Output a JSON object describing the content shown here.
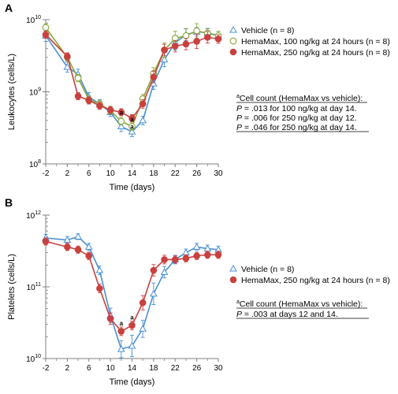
{
  "colors": {
    "vehicle": "#4a90d0",
    "hm100": "#8aa83a",
    "hm250": "#c8413f",
    "axis": "#7f7f7f"
  },
  "chart_data": [
    {
      "panel": "A",
      "type": "line",
      "xlabel": "Time (days)",
      "ylabel": "Leukocytes (cells/L)",
      "xticks": [
        -2,
        2,
        6,
        10,
        14,
        18,
        22,
        26,
        30
      ],
      "xlim": [
        -2,
        30
      ],
      "yscale": "log",
      "ylim_exponents": [
        8,
        10
      ],
      "yticks": [
        {
          "base": "10",
          "exp": "10"
        },
        {
          "base": "10",
          "exp": "9"
        },
        {
          "base": "10",
          "exp": "8"
        }
      ],
      "series": [
        {
          "name": "Vehicle (n = 8)",
          "marker": "triangle-open",
          "colorKey": "vehicle",
          "x": [
            -2,
            2,
            4,
            6,
            8,
            10,
            12,
            14,
            16,
            18,
            20,
            22,
            24,
            26,
            28,
            30
          ],
          "y": [
            6000000000,
            2200000000,
            1750000000,
            850000000,
            680000000,
            520000000,
            330000000,
            280000000,
            400000000,
            1300000000,
            2800000000,
            4800000000,
            6200000000,
            6800000000,
            6600000000,
            6000000000
          ],
          "err": [
            0.08,
            0.07,
            0.07,
            0.06,
            0.06,
            0.06,
            0.07,
            0.07,
            0.06,
            0.08,
            0.1,
            0.1,
            0.08,
            0.06,
            0.06,
            0.06
          ]
        },
        {
          "name": "HemaMax, 100 ng/kg at 24 hours (n = 8)",
          "marker": "circle-open",
          "colorKey": "hm100",
          "x": [
            -2,
            2,
            4,
            6,
            8,
            10,
            12,
            14,
            16,
            18,
            20,
            22,
            24,
            26,
            28,
            30
          ],
          "y": [
            7800000000,
            3000000000,
            1550000000,
            780000000,
            680000000,
            550000000,
            390000000,
            330000000,
            800000000,
            1800000000,
            3800000000,
            5500000000,
            6000000000,
            7000000000,
            6500000000,
            6000000000
          ],
          "err": [
            0.05,
            0.05,
            0.05,
            0.05,
            0.05,
            0.05,
            0.05,
            0.05,
            0.06,
            0.08,
            0.1,
            0.1,
            0.1,
            0.1,
            0.06,
            0.06
          ]
        },
        {
          "name": "HemaMax, 250 ng/kg at 24 hours (n = 8)",
          "marker": "circle-filled",
          "colorKey": "hm250",
          "x": [
            -2,
            2,
            4,
            6,
            8,
            10,
            12,
            14,
            16,
            18,
            20,
            22,
            24,
            26,
            28,
            30
          ],
          "y": [
            6200000000,
            3100000000,
            870000000,
            760000000,
            640000000,
            560000000,
            520000000,
            430000000,
            680000000,
            1600000000,
            3800000000,
            4300000000,
            4600000000,
            5000000000,
            5700000000,
            5400000000
          ],
          "err": [
            0.05,
            0.05,
            0.05,
            0.05,
            0.05,
            0.05,
            0.05,
            0.05,
            0.06,
            0.08,
            0.08,
            0.08,
            0.08,
            0.1,
            0.08,
            0.06
          ]
        }
      ],
      "annotations": [
        {
          "text": "a",
          "x": 12,
          "y": 480000000
        },
        {
          "text": "a",
          "x": 14,
          "y": 390000000
        },
        {
          "text": "a",
          "x": 14,
          "y": 305000000
        }
      ],
      "footnote": {
        "sup": "a",
        "title": "Cell count (HemaMax vs vehicle):",
        "lines": [
          {
            "p": "P",
            "rest": " = .013 for 100 ng/kg at day 14."
          },
          {
            "p": "P",
            "rest": " = .006 for 250 ng/kg at day 12."
          },
          {
            "p": "P",
            "rest": " = .046 for 250 ng/kg at day 14."
          }
        ]
      }
    },
    {
      "panel": "B",
      "type": "line",
      "xlabel": "Time (days)",
      "ylabel": "Platelets (cells/L)",
      "xticks": [
        -2,
        2,
        6,
        10,
        14,
        18,
        22,
        26,
        30
      ],
      "xlim": [
        -2,
        30
      ],
      "yscale": "log",
      "ylim_exponents": [
        10,
        12
      ],
      "yticks": [
        {
          "base": "10",
          "exp": "12"
        },
        {
          "base": "10",
          "exp": "11"
        },
        {
          "base": "10",
          "exp": "10"
        }
      ],
      "series": [
        {
          "name": "Vehicle (n = 8)",
          "marker": "triangle-open",
          "colorKey": "vehicle",
          "x": [
            -2,
            2,
            4,
            6,
            8,
            10,
            12,
            14,
            16,
            18,
            20,
            22,
            24,
            26,
            28,
            30
          ],
          "y": [
            480000000000,
            450000000000,
            500000000000,
            360000000000,
            170000000000,
            40000000000,
            13500000000,
            15000000000,
            26000000000,
            80000000000,
            160000000000,
            240000000000,
            300000000000,
            360000000000,
            340000000000,
            330000000000
          ],
          "err": [
            0.05,
            0.05,
            0.04,
            0.05,
            0.06,
            0.1,
            0.12,
            0.15,
            0.12,
            0.15,
            0.08,
            0.06,
            0.05,
            0.05,
            0.05,
            0.05
          ]
        },
        {
          "name": "HemaMax, 250 ng/kg at 24 hours (n = 8)",
          "marker": "circle-filled",
          "colorKey": "hm250",
          "x": [
            -2,
            2,
            4,
            6,
            8,
            10,
            12,
            14,
            16,
            18,
            20,
            22,
            24,
            26,
            28,
            30
          ],
          "y": [
            430000000000,
            360000000000,
            330000000000,
            270000000000,
            95000000000,
            36000000000,
            24000000000,
            29000000000,
            60000000000,
            170000000000,
            240000000000,
            240000000000,
            250000000000,
            270000000000,
            280000000000,
            280000000000
          ],
          "err": [
            0.05,
            0.05,
            0.05,
            0.05,
            0.06,
            0.08,
            0.06,
            0.06,
            0.1,
            0.08,
            0.06,
            0.05,
            0.05,
            0.05,
            0.05,
            0.05
          ]
        }
      ],
      "annotations": [
        {
          "text": "a",
          "x": 12,
          "y": 29000000000
        },
        {
          "text": "a",
          "x": 14,
          "y": 35000000000
        }
      ],
      "footnote": {
        "sup": "a",
        "title": "Cell count (HemaMax vs vehicle):",
        "lines": [
          {
            "p": "P",
            "rest": " = .003 at days 12 and 14."
          }
        ]
      }
    }
  ]
}
